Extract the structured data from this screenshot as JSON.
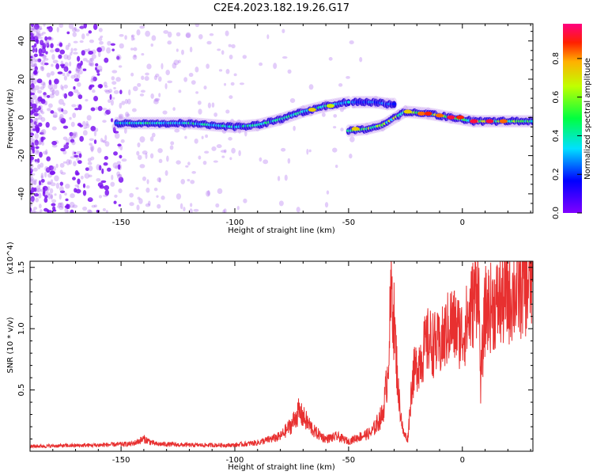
{
  "title": "C2E4.2023.182.19.26.G17",
  "chart_data": [
    {
      "type": "heatmap",
      "xlabel": "Height of straight line (km)",
      "ylabel": "Frequency (Hz)",
      "xlim": [
        -190,
        31
      ],
      "ylim": [
        -50,
        49
      ],
      "xticks": [
        -150,
        -100,
        -50,
        0
      ],
      "yticks": [
        -40,
        -20,
        0,
        20,
        40
      ],
      "colorbar": {
        "label": "Normalized spectral amplitude",
        "range": [
          0.0,
          0.98
        ],
        "ticks": [
          0.0,
          0.2,
          0.4,
          0.6,
          0.8
        ],
        "tick_labels": [
          "0.0",
          "0.2",
          "0.4",
          "0.6",
          "0.8"
        ]
      },
      "trace_segments": [
        {
          "points": [
            [
              -152,
              -3
            ],
            [
              -120,
              -3
            ],
            [
              -100,
              -5
            ],
            [
              -90,
              -4
            ],
            [
              -80,
              -1
            ],
            [
              -70,
              3
            ],
            [
              -60,
              6
            ],
            [
              -50,
              8
            ]
          ],
          "amplitude": 0.38
        },
        {
          "points": [
            [
              -48,
              8
            ],
            [
              -38,
              8
            ],
            [
              -33,
              7
            ],
            [
              -30,
              7
            ]
          ],
          "amplitude": 0.22
        },
        {
          "points": [
            [
              -50,
              -7
            ],
            [
              -42,
              -6
            ],
            [
              -35,
              -4
            ],
            [
              -28,
              1
            ],
            [
              -25,
              3
            ],
            [
              -15,
              2
            ],
            [
              -5,
              0
            ],
            [
              5,
              -2
            ],
            [
              31,
              -2
            ]
          ],
          "amplitude": 0.55
        }
      ],
      "hotspots": [
        {
          "x": -66,
          "y": 4,
          "amplitude": 0.75
        },
        {
          "x": -58,
          "y": 6,
          "amplitude": 0.7
        },
        {
          "x": -47,
          "y": -6,
          "amplitude": 0.75
        },
        {
          "x": -24,
          "y": 3,
          "amplitude": 0.75
        },
        {
          "x": -18,
          "y": 2,
          "amplitude": 0.85
        },
        {
          "x": -15,
          "y": 2,
          "amplitude": 0.9
        },
        {
          "x": -10,
          "y": 1,
          "amplitude": 0.85
        },
        {
          "x": -5,
          "y": 0,
          "amplitude": 0.95
        },
        {
          "x": -1,
          "y": 0,
          "amplitude": 0.9
        },
        {
          "x": 5,
          "y": -2,
          "amplitude": 0.95
        },
        {
          "x": 12,
          "y": -2,
          "amplitude": 0.95
        },
        {
          "x": 18,
          "y": -2,
          "amplitude": 0.85
        }
      ]
    },
    {
      "type": "line",
      "xlabel": "Height of straight line (km)",
      "ylabel": "SNR (10 * v/v)",
      "scale_note": "(x10^4)",
      "xlim": [
        -190,
        31
      ],
      "ylim": [
        0.0,
        1.55
      ],
      "xticks": [
        -150,
        -100,
        -50,
        0
      ],
      "yticks": [
        0.5,
        1.0,
        1.5
      ],
      "ytick_labels": [
        "0.5",
        "1.0",
        "1.5"
      ],
      "color": "#e83030",
      "series": [
        {
          "name": "SNR",
          "x": [
            -190,
            -160,
            -145,
            -140,
            -135,
            -120,
            -100,
            -90,
            -80,
            -75,
            -72,
            -70,
            -65,
            -60,
            -55,
            -50,
            -45,
            -40,
            -35,
            -33,
            -31,
            -30,
            -28,
            -26,
            -24,
            -22,
            -20,
            -15,
            -10,
            -5,
            0,
            3,
            6,
            7,
            8,
            10,
            15,
            20,
            25,
            31
          ],
          "y": [
            0.04,
            0.05,
            0.06,
            0.1,
            0.06,
            0.05,
            0.05,
            0.07,
            0.12,
            0.22,
            0.32,
            0.28,
            0.16,
            0.1,
            0.12,
            0.08,
            0.12,
            0.15,
            0.3,
            0.6,
            1.35,
            1.05,
            0.45,
            0.15,
            0.1,
            0.6,
            0.7,
            0.9,
            0.85,
            1.05,
            0.95,
            1.1,
            1.3,
            1.5,
            0.55,
            1.15,
            1.2,
            1.25,
            1.32,
            1.4
          ]
        }
      ]
    }
  ]
}
